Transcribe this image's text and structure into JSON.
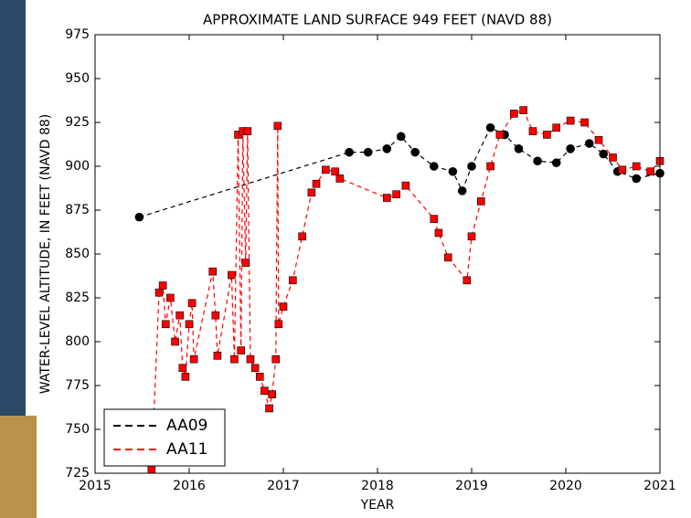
{
  "chart_data": {
    "type": "line",
    "title": "APPROXIMATE LAND SURFACE 949 FEET (NAVD 88)",
    "x_label": "YEAR",
    "y_label": "WATER-LEVEL ALTITUDE, IN FEET (NAVD 88)",
    "xlim": [
      2015,
      2021
    ],
    "xticks": [
      2015,
      2016,
      2017,
      2018,
      2019,
      2020,
      2021
    ],
    "ylim": [
      725,
      975
    ],
    "yticks": [
      725,
      750,
      775,
      800,
      825,
      850,
      875,
      900,
      925,
      950,
      975
    ],
    "legend": "lower left",
    "series": [
      {
        "name": "AA09",
        "color": "#000000",
        "marker": "circle",
        "x": [
          2015.47,
          2017.7,
          2017.9,
          2018.1,
          2018.25,
          2018.4,
          2018.6,
          2018.8,
          2018.9,
          2019.0,
          2019.2,
          2019.35,
          2019.5,
          2019.7,
          2019.9,
          2020.05,
          2020.25,
          2020.4,
          2020.55,
          2020.75,
          2021.0
        ],
        "values": [
          871,
          908,
          908,
          910,
          917,
          908,
          900,
          897,
          886,
          900,
          922,
          918,
          910,
          903,
          902,
          910,
          913,
          907,
          897,
          893,
          896
        ]
      },
      {
        "name": "AA11",
        "color": "#ff0000",
        "marker": "square",
        "x": [
          2015.6,
          2015.68,
          2015.72,
          2015.75,
          2015.8,
          2015.85,
          2015.9,
          2015.93,
          2015.96,
          2016.0,
          2016.03,
          2016.05,
          2016.25,
          2016.28,
          2016.3,
          2016.45,
          2016.48,
          2016.52,
          2016.55,
          2016.57,
          2016.6,
          2016.62,
          2016.65,
          2016.7,
          2016.75,
          2016.8,
          2016.85,
          2016.88,
          2016.92,
          2016.94,
          2016.95,
          2017.0,
          2017.1,
          2017.2,
          2017.3,
          2017.35,
          2017.45,
          2017.55,
          2017.6,
          2018.1,
          2018.2,
          2018.3,
          2018.6,
          2018.65,
          2018.75,
          2018.95,
          2019.0,
          2019.1,
          2019.2,
          2019.3,
          2019.45,
          2019.55,
          2019.65,
          2019.8,
          2019.9,
          2020.05,
          2020.2,
          2020.35,
          2020.5,
          2020.6,
          2020.75,
          2020.9,
          2021.0
        ],
        "values": [
          727,
          828,
          832,
          810,
          825,
          800,
          815,
          785,
          780,
          810,
          822,
          790,
          840,
          815,
          792,
          838,
          790,
          918,
          795,
          920,
          845,
          920,
          790,
          785,
          780,
          772,
          762,
          770,
          790,
          923,
          810,
          820,
          835,
          860,
          885,
          890,
          898,
          897,
          893,
          882,
          884,
          889,
          870,
          862,
          848,
          835,
          860,
          880,
          900,
          918,
          930,
          932,
          920,
          918,
          922,
          926,
          925,
          915,
          905,
          898,
          900,
          897,
          903
        ]
      }
    ]
  }
}
